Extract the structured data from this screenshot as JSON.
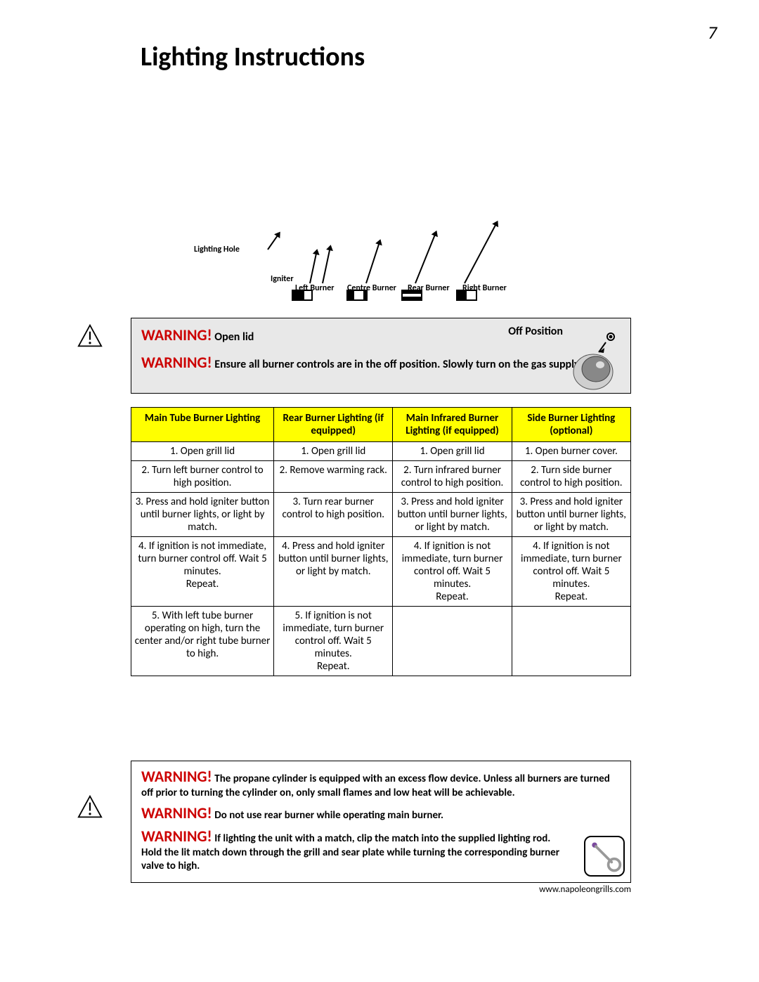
{
  "page_number": "7",
  "title": "Lighting Instructions",
  "diagram": {
    "lighting_hole": "Lighting Hole",
    "igniter": "Igniter",
    "left_burner": "Left Burner",
    "centre_burner": "Centre Burner",
    "rear_burner": "Rear Burner",
    "right_burner": "Right Burner"
  },
  "warning_box_1": {
    "warning_label": "WARNING!",
    "open_lid": "Open lid",
    "off_position": "Off Position",
    "ensure_text": "Ensure all burner controls are in the off position. Slowly turn on the gas supply valve."
  },
  "table": {
    "headers": [
      "Main Tube Burner Lighting",
      "Rear Burner Lighting (if equipped)",
      "Main Infrared Burner Lighting (if equipped)",
      "Side Burner Lighting (optional)"
    ],
    "rows": [
      [
        "1. Open grill lid",
        "1. Open grill lid",
        "1. Open grill lid",
        "1. Open burner cover."
      ],
      [
        "2. Turn left burner control to high position.",
        "2. Remove warming rack.",
        "2. Turn infrared burner control to high position.",
        "2. Turn side burner control to high position."
      ],
      [
        "3. Press and hold igniter button until burner lights, or light by match.",
        "3. Turn rear burner control to high position.",
        "3. Press and hold igniter button until burner lights, or light by match.",
        "3. Press and hold igniter button until burner lights, or light by match."
      ],
      [
        "4. If ignition is not immediate, turn burner control off.  Wait 5 minutes.\nRepeat.",
        "4. Press and hold igniter button until burner lights, or light by match.",
        "4. If ignition is not immediate, turn burner control off.  Wait 5 minutes.\nRepeat.",
        "4. If ignition is not immediate, turn burner control off.  Wait 5 minutes.\nRepeat."
      ],
      [
        "5. With left tube burner operating on high, turn the center and/or right tube burner to high.",
        "5. If ignition is not immediate, turn burner control off.  Wait 5 minutes.\nRepeat.",
        "",
        ""
      ]
    ]
  },
  "warning_box_2": {
    "w1": "The propane cylinder is equipped with an excess flow device.  Unless all burners are turned off prior to turning the cylinder on, only small flames and low heat will be achievable.",
    "w2": "Do not use rear burner while operating main burner.",
    "w3": "If lighting the unit with a match, clip the match into the supplied lighting rod. Hold the lit match down through the grill and sear plate while turning the corresponding burner valve to high."
  },
  "footer": "www.napoleongrills.com",
  "colors": {
    "warning_red": "#cc0000",
    "header_yellow": "#ffff00",
    "box_grey": "#e8e8e8"
  }
}
